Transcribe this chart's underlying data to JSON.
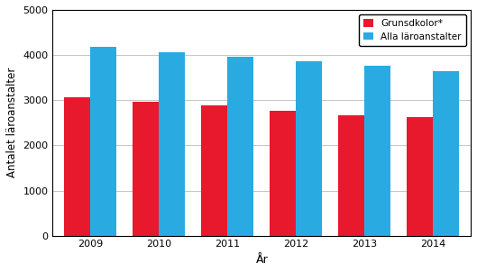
{
  "years": [
    "2009",
    "2010",
    "2011",
    "2012",
    "2013",
    "2014"
  ],
  "grundskolor": [
    3070,
    2960,
    2890,
    2760,
    2670,
    2620
  ],
  "alla": [
    4180,
    4060,
    3960,
    3870,
    3770,
    3640
  ],
  "color_red": "#E8192C",
  "color_blue": "#29ABE2",
  "ylabel": "Antalet läroanstalter",
  "xlabel": "År",
  "legend_red": "Grunsdkolor*",
  "legend_blue": "Alla läroanstalter",
  "ylim": [
    0,
    5000
  ],
  "yticks": [
    0,
    1000,
    2000,
    3000,
    4000,
    5000
  ],
  "bar_width": 0.38,
  "figsize": [
    5.29,
    3.02
  ],
  "dpi": 100,
  "background_color": "#ffffff",
  "grid_color": "#bbbbbb"
}
